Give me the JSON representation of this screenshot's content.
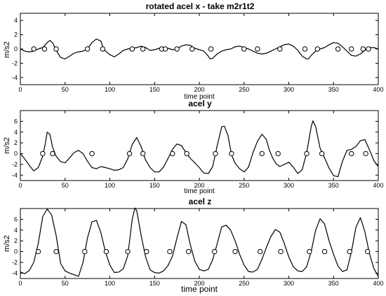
{
  "chart_data": [
    {
      "type": "line",
      "title": "rotated acel x - take m2r1t2",
      "xlabel": "time point",
      "ylabel": "m/s2",
      "xlim": [
        0,
        400
      ],
      "ylim": [
        -5,
        5
      ],
      "xticks": [
        0,
        50,
        100,
        150,
        200,
        250,
        300,
        350,
        400
      ],
      "yticks": [
        -4,
        -2,
        0,
        2,
        4
      ],
      "grid": false,
      "series": [
        {
          "x": [
            0,
            5,
            10,
            15,
            20,
            25,
            30,
            33,
            36,
            40,
            45,
            50,
            55,
            60,
            65,
            70,
            75,
            80,
            85,
            90,
            93,
            97,
            100,
            105,
            110,
            115,
            120,
            125,
            130,
            135,
            140,
            145,
            150,
            155,
            160,
            165,
            170,
            175,
            180,
            185,
            190,
            195,
            200,
            205,
            210,
            212,
            215,
            220,
            225,
            230,
            235,
            240,
            245,
            250,
            255,
            260,
            265,
            270,
            275,
            280,
            285,
            290,
            295,
            300,
            305,
            310,
            315,
            320,
            322,
            325,
            330,
            335,
            340,
            345,
            350,
            355,
            360,
            365,
            370,
            375,
            380,
            385,
            390,
            395,
            400
          ],
          "y": [
            0,
            -0.3,
            -0.4,
            -0.3,
            0,
            0.2,
            0.9,
            1.2,
            0.9,
            -0.2,
            -1.2,
            -1.4,
            -1,
            -0.6,
            -0.4,
            -0.3,
            0,
            0.9,
            1.4,
            1.1,
            0,
            -0.5,
            -0.8,
            -1.1,
            -0.7,
            -0.2,
            0,
            0.1,
            0.2,
            0.4,
            0.2,
            -0.2,
            -0.1,
            0.1,
            0.2,
            0.1,
            -0.1,
            0,
            0.4,
            0.6,
            0.5,
            0.1,
            -0.1,
            -0.3,
            -1,
            -1.4,
            -1.3,
            -0.7,
            -0.3,
            -0.1,
            0,
            0.3,
            0.4,
            0.2,
            0,
            -0.3,
            -0.6,
            -0.7,
            -0.6,
            -0.3,
            0,
            0.3,
            0.6,
            0.7,
            0.4,
            -0.2,
            -1,
            -1.4,
            -1.4,
            -0.9,
            -0.3,
            0,
            0.2,
            0.6,
            0.9,
            0.8,
            0.3,
            -0.3,
            -0.9,
            -1,
            -0.7,
            -0.2,
            0.2,
            0.2,
            0
          ],
          "crossings_x": [
            15,
            27,
            40,
            75,
            92,
            125,
            137,
            158,
            162,
            175,
            192,
            213,
            250,
            265,
            290,
            318,
            332,
            355,
            370,
            383,
            389
          ]
        }
      ]
    },
    {
      "type": "line",
      "title": "acel y",
      "xlabel": "time point",
      "ylabel": "m/s2",
      "xlim": [
        0,
        400
      ],
      "ylim": [
        -5,
        8
      ],
      "xticks": [
        0,
        50,
        100,
        150,
        200,
        250,
        300,
        350,
        400
      ],
      "yticks": [
        -4,
        -2,
        0,
        2,
        4,
        6
      ],
      "grid": false,
      "series": [
        {
          "x": [
            0,
            5,
            10,
            15,
            20,
            25,
            28,
            30,
            33,
            36,
            40,
            45,
            50,
            55,
            60,
            65,
            70,
            75,
            80,
            85,
            90,
            95,
            100,
            105,
            110,
            115,
            120,
            125,
            130,
            135,
            140,
            145,
            150,
            155,
            160,
            165,
            170,
            175,
            180,
            185,
            190,
            195,
            200,
            205,
            210,
            215,
            220,
            225,
            228,
            232,
            236,
            240,
            245,
            250,
            255,
            260,
            265,
            270,
            275,
            278,
            282,
            286,
            290,
            295,
            300,
            305,
            310,
            315,
            320,
            325,
            327,
            330,
            335,
            340,
            345,
            350,
            355,
            360,
            365,
            370,
            375,
            380,
            385,
            388,
            392,
            395,
            400
          ],
          "y": [
            0,
            -1,
            -2.2,
            -3.2,
            -2.6,
            -0.5,
            2,
            4,
            3.6,
            1.2,
            -0.5,
            -1.5,
            -1.7,
            -0.8,
            0.2,
            0.6,
            0,
            -1.4,
            -2.6,
            -2.8,
            -2.4,
            -2.6,
            -2.8,
            -3.1,
            -3,
            -2.6,
            -1,
            1.7,
            3,
            1.3,
            -1.2,
            -2.6,
            -3.4,
            -3.4,
            -2.5,
            -0.9,
            0.8,
            1.8,
            1.5,
            0.2,
            -0.9,
            -1.7,
            -2.6,
            -3.6,
            -3.7,
            -2.4,
            1.5,
            5,
            5.1,
            3.4,
            -0.2,
            -1.8,
            -2.8,
            -3.4,
            -2.5,
            0.2,
            2.3,
            3.6,
            2.6,
            0.8,
            -0.8,
            -1.9,
            -2.4,
            -2,
            -1.6,
            -2.5,
            -3.7,
            -3,
            0.2,
            5,
            6.1,
            5,
            1,
            -0.8,
            -2.7,
            -4.1,
            -4.3,
            -1.4,
            0.6,
            0.8,
            1.3,
            2.4,
            2.6,
            1.5,
            0,
            -1.3,
            -2.4
          ]
        }
      ],
      "crossings_x": [
        25,
        36,
        80,
        122,
        137,
        170,
        186,
        218,
        236,
        270,
        288,
        320,
        337,
        370,
        386
      ]
    },
    {
      "type": "line",
      "title": "acel z",
      "xlabel": "time point",
      "ylabel": "m/s2",
      "xlim": [
        0,
        400
      ],
      "ylim": [
        -5,
        8
      ],
      "xticks": [
        0,
        50,
        100,
        150,
        200,
        250,
        300,
        350,
        400
      ],
      "yticks": [
        -4,
        -2,
        0,
        2,
        4,
        6
      ],
      "grid": false,
      "series": [
        {
          "x": [
            0,
            5,
            10,
            15,
            20,
            25,
            30,
            35,
            40,
            45,
            50,
            55,
            60,
            65,
            70,
            75,
            80,
            85,
            90,
            95,
            100,
            105,
            110,
            115,
            120,
            125,
            128,
            130,
            135,
            140,
            145,
            150,
            155,
            160,
            165,
            170,
            175,
            180,
            185,
            190,
            195,
            200,
            205,
            210,
            215,
            220,
            225,
            230,
            235,
            240,
            245,
            250,
            255,
            260,
            265,
            270,
            275,
            280,
            285,
            290,
            295,
            300,
            305,
            310,
            315,
            320,
            325,
            330,
            335,
            340,
            345,
            350,
            355,
            360,
            365,
            370,
            375,
            380,
            385,
            390,
            395,
            400
          ],
          "y": [
            -3.8,
            -4.1,
            -3.5,
            -2,
            1.5,
            6.5,
            7.9,
            6.8,
            3,
            -2.2,
            -3.6,
            -4,
            -4.3,
            -4.6,
            -2,
            2.5,
            5.5,
            5.8,
            3.5,
            0,
            -2.5,
            -3.9,
            -3.8,
            -3.2,
            -0.8,
            6,
            8.1,
            7.6,
            3,
            -1,
            -3.4,
            -3.9,
            -4,
            -3.6,
            -2.6,
            -0.8,
            2.5,
            5.6,
            5,
            1.2,
            -1.8,
            -3.3,
            -3.6,
            -3.3,
            -1.5,
            1.5,
            4.6,
            4.9,
            4,
            2,
            -0.5,
            -2.5,
            -3.7,
            -3.8,
            -3.3,
            -1.4,
            0.8,
            2.8,
            4.1,
            3.6,
            1.5,
            -1,
            -2.8,
            -3.6,
            -3.7,
            -2.8,
            0,
            4,
            6.1,
            5.1,
            2,
            -0.5,
            -2.7,
            -3.7,
            -3.4,
            0,
            4.5,
            6.3,
            3.7,
            -0.3,
            -3.1,
            -4.6
          ]
        }
      ],
      "crossings_x": [
        20,
        40,
        72,
        96,
        120,
        141,
        167,
        188,
        217,
        240,
        268,
        291,
        323,
        340,
        368,
        388
      ]
    }
  ]
}
